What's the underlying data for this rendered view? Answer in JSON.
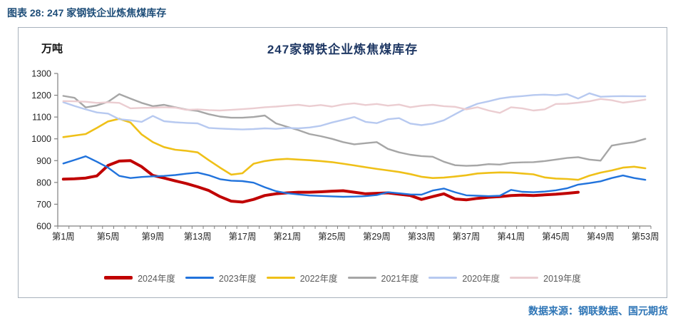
{
  "header": {
    "title": "图表 28: 247 家钢铁企业炼焦煤库存"
  },
  "chart": {
    "title": "247家钢铁企业炼焦煤库存",
    "unit_label": "万吨",
    "source": "数据来源：钢联数据、国元期货"
  },
  "chart_data": {
    "type": "line",
    "weeks": 53,
    "x_label_interval": 4,
    "x_label_prefix": "第",
    "x_label_suffix": "周",
    "x_tick_labels": [
      "第1周",
      "第5周",
      "第9周",
      "第13周",
      "第17周",
      "第21周",
      "第25周",
      "第29周",
      "第33周",
      "第37周",
      "第41周",
      "第45周",
      "第49周",
      "第53周"
    ],
    "ylim": [
      600,
      1300
    ],
    "y_tick_step": 100,
    "grid": false,
    "legend_position": "bottom",
    "axis_color": "#808080",
    "text_color": "#262626",
    "legend_text_color": "#595959",
    "series": [
      {
        "name": "2024年度",
        "color": "#C00000",
        "width": 4,
        "values": [
          815,
          817,
          820,
          830,
          878,
          898,
          900,
          872,
          832,
          820,
          807,
          795,
          780,
          763,
          735,
          714,
          710,
          722,
          740,
          748,
          752,
          755,
          755,
          757,
          760,
          762,
          755,
          748,
          750,
          752,
          746,
          740,
          722,
          735,
          748,
          724,
          720,
          727,
          732,
          735,
          740,
          742,
          740,
          743,
          746,
          750,
          755
        ]
      },
      {
        "name": "2023年度",
        "color": "#2173DC",
        "width": 2.4,
        "values": [
          887,
          903,
          920,
          895,
          868,
          830,
          820,
          825,
          828,
          830,
          834,
          840,
          845,
          833,
          815,
          808,
          806,
          799,
          778,
          760,
          750,
          745,
          740,
          738,
          736,
          734,
          735,
          737,
          742,
          755,
          750,
          745,
          744,
          763,
          772,
          755,
          741,
          739,
          737,
          739,
          766,
          757,
          755,
          758,
          764,
          773,
          790,
          797,
          805,
          820,
          832,
          820,
          812
        ]
      },
      {
        "name": "2022年度",
        "color": "#EFC018",
        "width": 2.6,
        "values": [
          1008,
          1015,
          1022,
          1050,
          1080,
          1092,
          1075,
          1020,
          985,
          962,
          950,
          945,
          938,
          902,
          868,
          836,
          842,
          886,
          898,
          905,
          908,
          905,
          902,
          898,
          893,
          886,
          878,
          870,
          862,
          855,
          848,
          838,
          826,
          820,
          822,
          827,
          833,
          841,
          844,
          846,
          845,
          841,
          837,
          823,
          818,
          816,
          812,
          831,
          845,
          855,
          868,
          872,
          865
        ]
      },
      {
        "name": "2021年度",
        "color": "#A6A6A6",
        "width": 2.4,
        "values": [
          1197,
          1188,
          1144,
          1153,
          1170,
          1205,
          1185,
          1165,
          1150,
          1156,
          1145,
          1134,
          1128,
          1113,
          1102,
          1097,
          1097,
          1100,
          1107,
          1071,
          1055,
          1040,
          1022,
          1012,
          1000,
          985,
          975,
          980,
          985,
          954,
          938,
          927,
          921,
          918,
          895,
          879,
          876,
          878,
          884,
          882,
          890,
          892,
          893,
          898,
          905,
          912,
          916,
          905,
          900,
          969,
          978,
          985,
          1000
        ]
      },
      {
        "name": "2020年度",
        "color": "#B7C9F0",
        "width": 2.4,
        "values": [
          1168,
          1151,
          1135,
          1121,
          1116,
          1090,
          1085,
          1078,
          1105,
          1081,
          1076,
          1073,
          1071,
          1050,
          1047,
          1045,
          1043,
          1045,
          1048,
          1046,
          1050,
          1048,
          1052,
          1060,
          1075,
          1087,
          1100,
          1078,
          1072,
          1090,
          1095,
          1070,
          1063,
          1070,
          1085,
          1113,
          1140,
          1161,
          1172,
          1185,
          1192,
          1196,
          1201,
          1203,
          1200,
          1205,
          1185,
          1209,
          1193,
          1195,
          1196,
          1195,
          1195
        ]
      },
      {
        "name": "2019年度",
        "color": "#EBCDD1",
        "width": 2.4,
        "values": [
          1173,
          1172,
          1170,
          1165,
          1168,
          1165,
          1140,
          1142,
          1143,
          1145,
          1143,
          1133,
          1135,
          1132,
          1130,
          1133,
          1136,
          1140,
          1145,
          1148,
          1152,
          1156,
          1150,
          1155,
          1148,
          1158,
          1163,
          1155,
          1160,
          1152,
          1157,
          1145,
          1152,
          1156,
          1150,
          1147,
          1135,
          1145,
          1130,
          1119,
          1145,
          1140,
          1130,
          1135,
          1160,
          1161,
          1166,
          1172,
          1183,
          1177,
          1166,
          1172,
          1180
        ]
      }
    ]
  }
}
